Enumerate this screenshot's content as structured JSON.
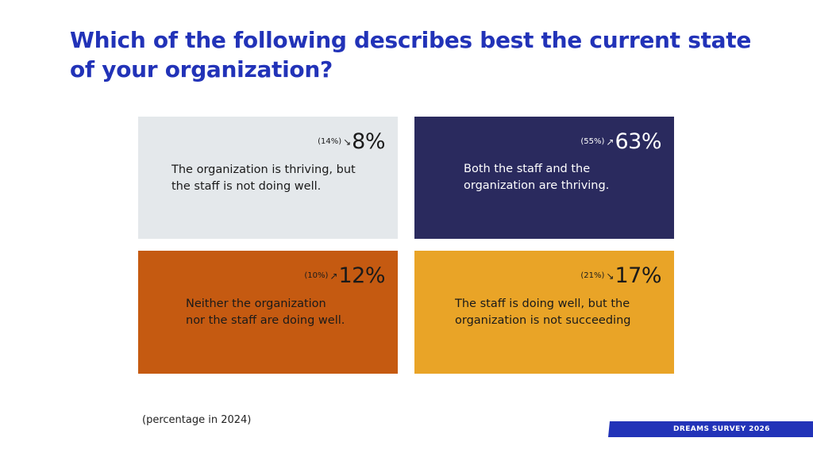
{
  "title": "Which of the following describes best the current state of your organization?",
  "colors": {
    "title": "#2233b8",
    "quadrant_light_gray": "#e4e8eb",
    "quadrant_navy": "#2a2a5e",
    "quadrant_rust": "#c55a11",
    "quadrant_gold": "#e9a427",
    "brand_bar": "#2233b8"
  },
  "quadrants": [
    {
      "previous": "(14%)",
      "trend_icon": "arrow-down-right-icon",
      "trend_glyph": "↘",
      "value": "8%",
      "lines": [
        "The organization is thriving, but",
        "the staff is not doing well."
      ],
      "background": "#e4e8eb",
      "text_color": "#1a1a1a"
    },
    {
      "previous": "(55%)",
      "trend_icon": "arrow-up-right-icon",
      "trend_glyph": "↗",
      "value": "63%",
      "lines": [
        "Both the staff and the",
        "organization are thriving."
      ],
      "background": "#2a2a5e",
      "text_color": "#ffffff"
    },
    {
      "previous": "(10%)",
      "trend_icon": "arrow-up-right-icon",
      "trend_glyph": "↗",
      "value": "12%",
      "lines": [
        "Neither the organization",
        "nor the staff are doing well."
      ],
      "background": "#c55a11",
      "text_color": "#1a1a1a"
    },
    {
      "previous": "(21%)",
      "trend_icon": "arrow-down-right-icon",
      "trend_glyph": "↘",
      "value": "17%",
      "lines": [
        "The staff is doing well, but the",
        "organization is not succeeding"
      ],
      "background": "#e9a427",
      "text_color": "#1a1a1a"
    }
  ],
  "footnote": "(percentage in 2024)",
  "brand_label": "DREAMS SURVEY 2026"
}
